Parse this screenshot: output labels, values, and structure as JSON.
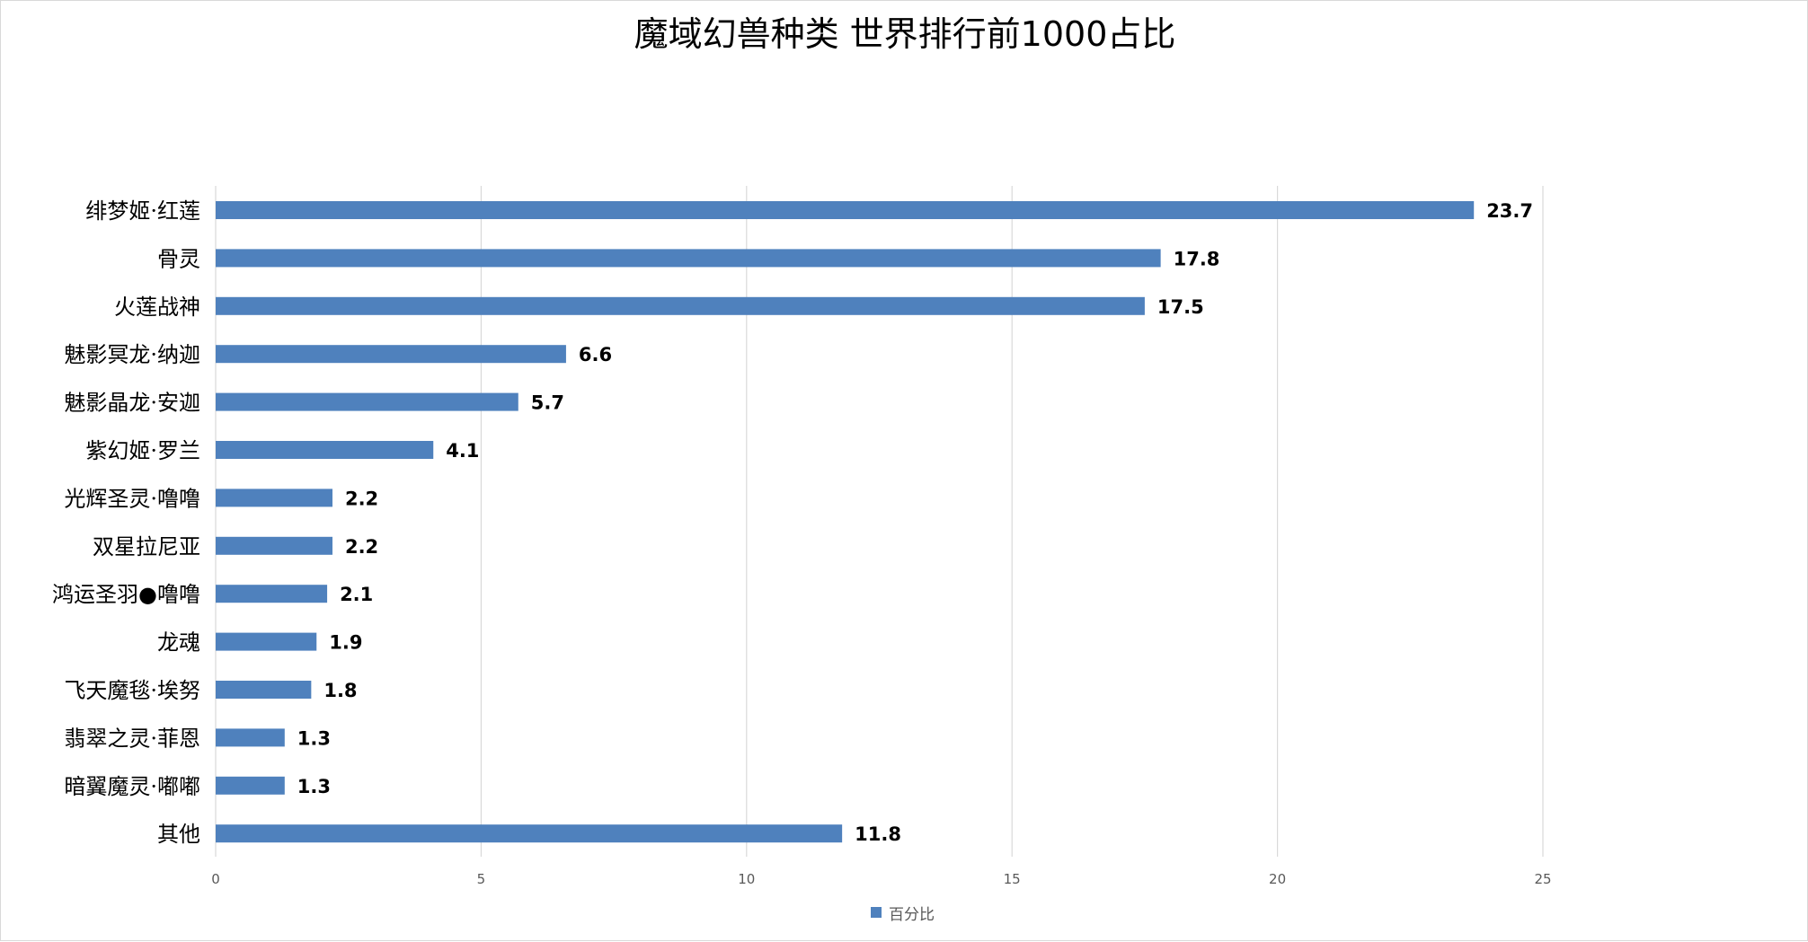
{
  "chart_data": {
    "type": "bar",
    "orientation": "horizontal",
    "title": "魔域幻兽种类  世界排行前1000占比",
    "xlabel": "",
    "ylabel": "",
    "categories": [
      "绯梦姬·红莲",
      "骨灵",
      "火莲战神",
      "魅影冥龙·纳迦",
      "魅影晶龙·安迦",
      "紫幻姬·罗兰",
      "光辉圣灵·噜噜",
      "双星拉尼亚",
      "鸿运圣羽●噜噜",
      "龙魂",
      "飞天魔毯·埃努",
      "翡翠之灵·菲恩",
      "暗翼魔灵·嘟嘟",
      "其他"
    ],
    "series": [
      {
        "name": "百分比",
        "values": [
          23.7,
          17.8,
          17.5,
          6.6,
          5.7,
          4.1,
          2.2,
          2.2,
          2.1,
          1.9,
          1.8,
          1.3,
          1.3,
          11.8
        ],
        "labels": [
          "23.7",
          "17.8",
          "17.5",
          "6.6",
          "5.7",
          "4.1",
          "2.2",
          "2.2",
          "2.1",
          "1.9",
          "1.8",
          "1.3",
          "1.3",
          "11.8"
        ]
      }
    ],
    "xlim": [
      0,
      25
    ],
    "xticks": [
      "0",
      "5",
      "10",
      "15",
      "20",
      "25"
    ],
    "grid": true,
    "legend_position": "bottom",
    "colors": {
      "bar": "#4f81bd",
      "grid": "#d9d9d9",
      "tick_text": "#595959",
      "text": "#000000"
    }
  }
}
